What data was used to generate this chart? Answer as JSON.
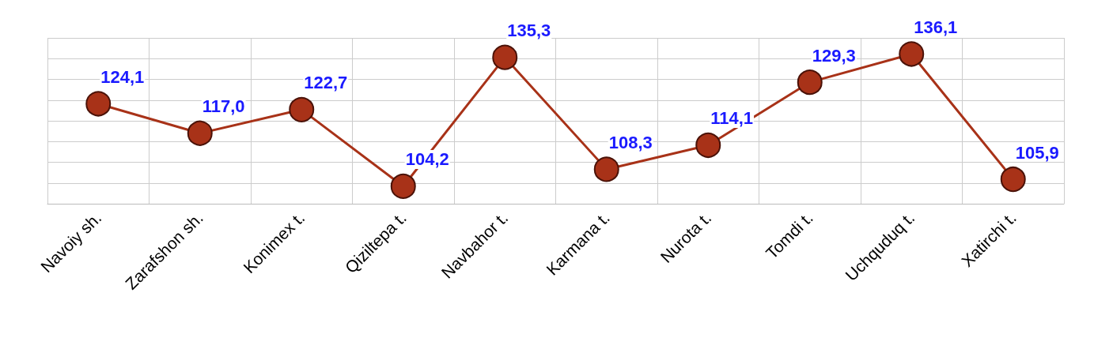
{
  "chart_data": {
    "type": "line",
    "categories": [
      "Navoiy sh.",
      "Zarafshon sh.",
      "Konimex t.",
      "Qiziltepa t.",
      "Navbahor t.",
      "Karmana t.",
      "Nurota t.",
      "Tomdi t.",
      "Uchquduq t.",
      "Xatirchi t."
    ],
    "series": [
      {
        "color": "#a83218",
        "values": [
          124.1,
          117.0,
          122.7,
          104.2,
          135.3,
          108.3,
          114.1,
          129.3,
          136.1,
          105.9
        ],
        "value_labels": [
          "124,1",
          "117,0",
          "122,7",
          "104,2",
          "135,3",
          "108,3",
          "114,1",
          "129,3",
          "136,1",
          "105,9"
        ]
      }
    ],
    "relative": false,
    "grid": true,
    "marker": "circle",
    "line_style": "solid",
    "tick_labels": "x"
  }
}
